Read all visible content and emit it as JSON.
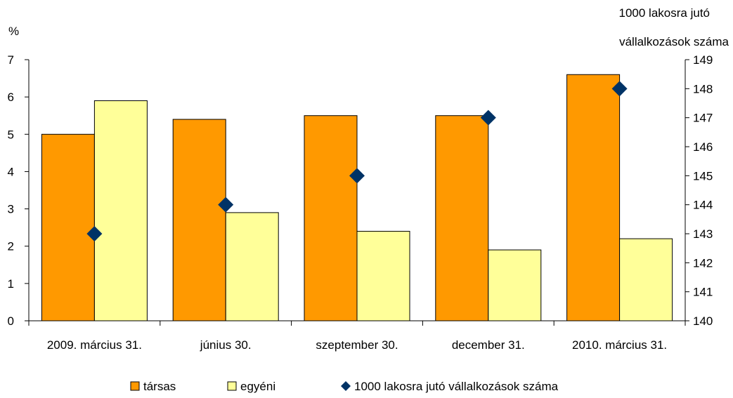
{
  "chart_data": {
    "type": "bar",
    "categories": [
      "2009. március 31.",
      "június 30.",
      "szeptember 30.",
      "december 31.",
      "2010. március 31."
    ],
    "series": [
      {
        "name": "társas",
        "kind": "bar",
        "axis": "left",
        "color": "#FF9900",
        "values": [
          5.0,
          5.4,
          5.5,
          5.5,
          6.6
        ]
      },
      {
        "name": "egyéni",
        "kind": "bar",
        "axis": "left",
        "color": "#FFFF99",
        "values": [
          5.9,
          2.9,
          2.4,
          1.9,
          2.2
        ]
      },
      {
        "name": "1000 lakosra jutó vállalkozások száma",
        "kind": "marker",
        "axis": "right",
        "color": "#003366",
        "values": [
          143,
          144,
          145,
          147,
          148
        ]
      }
    ],
    "y_left": {
      "label": "%",
      "min": 0,
      "max": 7,
      "ticks": [
        0,
        1,
        2,
        3,
        4,
        5,
        6,
        7
      ]
    },
    "y_right": {
      "label_line1": "1000 lakosra jutó",
      "label_line2": "vállalkozások száma",
      "min": 140,
      "max": 149,
      "ticks": [
        140,
        141,
        142,
        143,
        144,
        145,
        146,
        147,
        148,
        149
      ]
    },
    "grid": false,
    "legend_position": "bottom"
  }
}
